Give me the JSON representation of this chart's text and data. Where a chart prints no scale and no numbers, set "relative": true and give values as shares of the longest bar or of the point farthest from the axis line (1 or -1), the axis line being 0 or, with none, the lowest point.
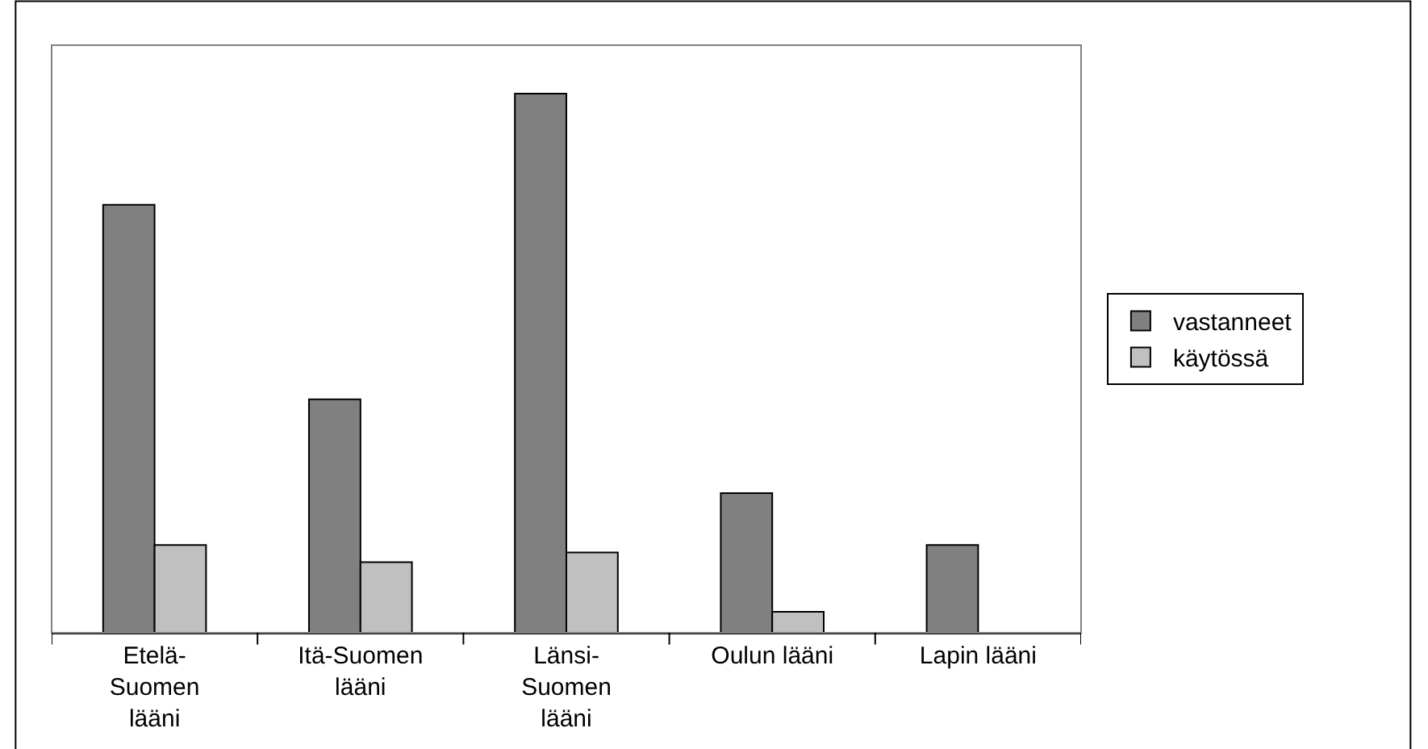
{
  "chart_data": {
    "type": "bar",
    "relative": true,
    "categories": [
      "Etelä-Suomen lääni",
      "Itä-Suomen lääni",
      "Länsi-Suomen lääni",
      "Oulun lääni",
      "Lapin lääni"
    ],
    "series": [
      {
        "name": "vastanneet",
        "color": "#808080",
        "values": [
          0.794,
          0.433,
          1,
          0.259,
          0.163
        ]
      },
      {
        "name": "käytössä",
        "color": "#c0c0c0",
        "values": [
          0.163,
          0.131,
          0.149,
          0.039,
          null
        ]
      }
    ],
    "legend": "right"
  }
}
